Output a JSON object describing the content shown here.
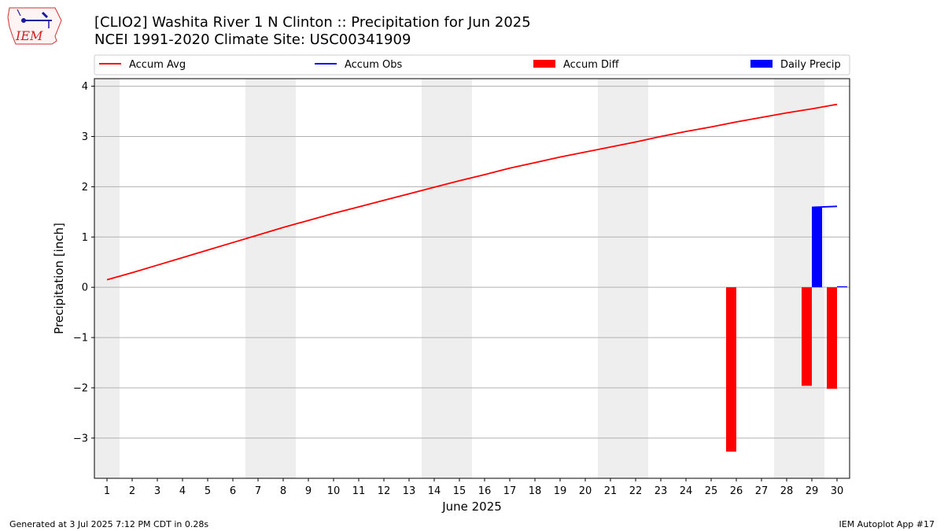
{
  "title_line1": "[CLIO2] Washita River 1 N Clinton :: Precipitation for Jun 2025",
  "title_line2": "NCEI 1991-2020 Climate Site: USC00341909",
  "footer_left": "Generated at 3 Jul 2025 7:12 PM CDT in 0.28s",
  "footer_right": "IEM Autoplot App #17",
  "logo_text": "IEM",
  "colors": {
    "avg": "#ff0000",
    "obs": "#0000ff",
    "diff": "#ff0000",
    "daily": "#0000ff",
    "weekend_band": "#eeeeee",
    "grid": "#b0b0b0"
  },
  "chart_data": {
    "type": "bar",
    "xlabel": "June 2025",
    "ylabel": "Precipitation [inch]",
    "xlim": [
      0.5,
      30.5
    ],
    "ylim": [
      -3.8,
      4.15
    ],
    "yticks": [
      -3,
      -2,
      -1,
      0,
      1,
      2,
      3,
      4
    ],
    "ytick_labels": [
      "−3",
      "−2",
      "−1",
      "0",
      "1",
      "2",
      "3",
      "4"
    ],
    "days": [
      1,
      2,
      3,
      4,
      5,
      6,
      7,
      8,
      9,
      10,
      11,
      12,
      13,
      14,
      15,
      16,
      17,
      18,
      19,
      20,
      21,
      22,
      23,
      24,
      25,
      26,
      27,
      28,
      29,
      30
    ],
    "weekend_bands": [
      [
        0.5,
        1.5
      ],
      [
        6.5,
        8.5
      ],
      [
        13.5,
        15.5
      ],
      [
        20.5,
        22.5
      ],
      [
        27.5,
        29.5
      ]
    ],
    "grid": true,
    "legend": {
      "placement": "top",
      "entries": [
        {
          "label": "Accum Avg",
          "kind": "line",
          "color": "#ff0000"
        },
        {
          "label": "Accum Obs",
          "kind": "line",
          "color": "#0000ff"
        },
        {
          "label": "Accum Diff",
          "kind": "bar",
          "color": "#ff0000"
        },
        {
          "label": "Daily Precip",
          "kind": "bar",
          "color": "#0000ff"
        }
      ]
    },
    "series": [
      {
        "name": "Accum Avg",
        "type": "line",
        "values": [
          0.15,
          0.29,
          0.44,
          0.59,
          0.74,
          0.89,
          1.04,
          1.19,
          1.33,
          1.47,
          1.6,
          1.73,
          1.86,
          1.99,
          2.12,
          2.24,
          2.37,
          2.48,
          2.59,
          2.69,
          2.79,
          2.89,
          3.0,
          3.1,
          3.19,
          3.29,
          3.38,
          3.47,
          3.55,
          3.64
        ]
      },
      {
        "name": "Accum Obs",
        "type": "line",
        "x": [
          29,
          30
        ],
        "values": [
          1.59,
          1.61
        ]
      },
      {
        "name": "Accum Diff",
        "type": "bar",
        "x": [
          26,
          29,
          30
        ],
        "values": [
          -3.27,
          -1.96,
          -2.02
        ]
      },
      {
        "name": "Daily Precip",
        "type": "bar",
        "x": [
          29,
          30
        ],
        "values": [
          1.59,
          0.02
        ]
      }
    ]
  }
}
